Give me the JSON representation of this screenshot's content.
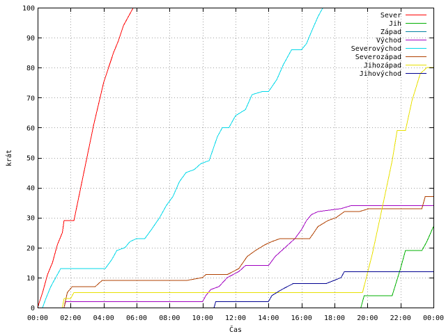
{
  "chart_data": {
    "type": "line",
    "title": "",
    "xlabel": "Čas",
    "ylabel": "krát",
    "xlim": [
      0,
      24
    ],
    "ylim": [
      0,
      100
    ],
    "x_ticks": [
      0,
      2,
      4,
      6,
      8,
      10,
      12,
      14,
      16,
      18,
      20,
      22,
      24
    ],
    "x_tick_labels": [
      "00:00",
      "02:00",
      "04:00",
      "06:00",
      "08:00",
      "10:00",
      "12:00",
      "14:00",
      "16:00",
      "18:00",
      "20:00",
      "22:00",
      "00:00"
    ],
    "y_ticks": [
      0,
      10,
      20,
      30,
      40,
      50,
      60,
      70,
      80,
      90,
      100
    ],
    "y_tick_labels": [
      "0",
      "10",
      "20",
      "30",
      "40",
      "50",
      "60",
      "70",
      "80",
      "90",
      "100"
    ],
    "grid": true,
    "legend_position": "top-right",
    "series": [
      {
        "name": "Sever",
        "color": "#ff0000",
        "points": [
          [
            0,
            0
          ],
          [
            0.3,
            5
          ],
          [
            0.6,
            11
          ],
          [
            0.9,
            15
          ],
          [
            1.2,
            21
          ],
          [
            1.5,
            25
          ],
          [
            1.6,
            29
          ],
          [
            2.2,
            29
          ],
          [
            2.5,
            37
          ],
          [
            2.8,
            45
          ],
          [
            3.1,
            53
          ],
          [
            3.4,
            61
          ],
          [
            3.7,
            68
          ],
          [
            4.0,
            75
          ],
          [
            4.3,
            80
          ],
          [
            4.6,
            85
          ],
          [
            4.9,
            89
          ],
          [
            5.2,
            94
          ],
          [
            5.5,
            97
          ],
          [
            5.8,
            100
          ]
        ]
      },
      {
        "name": "Jih",
        "color": "#00b000",
        "points": [
          [
            19.6,
            0
          ],
          [
            19.8,
            4
          ],
          [
            21.5,
            4
          ],
          [
            22.0,
            13
          ],
          [
            22.3,
            19
          ],
          [
            23.3,
            19
          ],
          [
            23.6,
            22
          ],
          [
            24,
            27
          ]
        ]
      },
      {
        "name": "Západ",
        "color": "#0080a0",
        "points": []
      },
      {
        "name": "Východ",
        "color": "#a000c0",
        "points": [
          [
            1.6,
            0
          ],
          [
            1.7,
            2
          ],
          [
            10.0,
            2
          ],
          [
            10.2,
            4
          ],
          [
            10.5,
            6
          ],
          [
            11.0,
            7
          ],
          [
            11.5,
            10
          ],
          [
            12.2,
            12
          ],
          [
            12.6,
            14
          ],
          [
            14.0,
            14
          ],
          [
            14.4,
            17
          ],
          [
            15.0,
            20
          ],
          [
            15.6,
            23
          ],
          [
            16.0,
            26
          ],
          [
            16.3,
            29
          ],
          [
            16.6,
            31
          ],
          [
            17.0,
            32
          ],
          [
            18.4,
            33
          ],
          [
            19.0,
            34
          ],
          [
            23.6,
            34
          ],
          [
            24,
            34
          ]
        ]
      },
      {
        "name": "Severovýchod",
        "color": "#00d8e8",
        "points": [
          [
            0.3,
            0
          ],
          [
            0.5,
            3
          ],
          [
            0.8,
            7
          ],
          [
            1.1,
            10
          ],
          [
            1.4,
            13
          ],
          [
            2.5,
            13
          ],
          [
            4.1,
            13
          ],
          [
            4.5,
            16
          ],
          [
            4.8,
            19
          ],
          [
            5.3,
            20
          ],
          [
            5.6,
            22
          ],
          [
            6.0,
            23
          ],
          [
            6.5,
            23
          ],
          [
            6.9,
            26
          ],
          [
            7.4,
            30
          ],
          [
            7.8,
            34
          ],
          [
            8.2,
            37
          ],
          [
            8.6,
            42
          ],
          [
            9.0,
            45
          ],
          [
            9.5,
            46
          ],
          [
            9.9,
            48
          ],
          [
            10.4,
            49
          ],
          [
            10.9,
            57
          ],
          [
            11.2,
            60
          ],
          [
            11.6,
            60
          ],
          [
            12.0,
            64
          ],
          [
            12.6,
            66
          ],
          [
            13.0,
            71
          ],
          [
            13.6,
            72
          ],
          [
            14.0,
            72
          ],
          [
            14.5,
            76
          ],
          [
            14.9,
            81
          ],
          [
            15.4,
            86
          ],
          [
            16.0,
            86
          ],
          [
            16.3,
            88
          ],
          [
            16.6,
            92
          ],
          [
            17.0,
            97
          ],
          [
            17.3,
            100
          ]
        ]
      },
      {
        "name": "Severozápad",
        "color": "#b04000",
        "points": [
          [
            1.6,
            0
          ],
          [
            1.8,
            5
          ],
          [
            2.1,
            7
          ],
          [
            3.5,
            7
          ],
          [
            3.9,
            9
          ],
          [
            9.0,
            9
          ],
          [
            10.0,
            10
          ],
          [
            10.2,
            11
          ],
          [
            11.5,
            11
          ],
          [
            12.2,
            13
          ],
          [
            12.7,
            17
          ],
          [
            13.2,
            19
          ],
          [
            13.8,
            21
          ],
          [
            14.2,
            22
          ],
          [
            14.7,
            23
          ],
          [
            16.5,
            23
          ],
          [
            17.0,
            27
          ],
          [
            17.6,
            29
          ],
          [
            18.1,
            30
          ],
          [
            18.6,
            32
          ],
          [
            19.5,
            32
          ],
          [
            20.1,
            33
          ],
          [
            23.3,
            33
          ],
          [
            23.5,
            37
          ],
          [
            24,
            37
          ]
        ]
      },
      {
        "name": "Jihozápad",
        "color": "#e8e000",
        "points": [
          [
            1.5,
            0
          ],
          [
            1.6,
            3
          ],
          [
            2.0,
            3
          ],
          [
            2.2,
            5
          ],
          [
            19.0,
            5
          ],
          [
            19.7,
            5
          ],
          [
            20.3,
            18
          ],
          [
            21.0,
            36
          ],
          [
            21.5,
            49
          ],
          [
            21.8,
            59
          ],
          [
            22.3,
            59
          ],
          [
            22.7,
            69
          ],
          [
            23.2,
            78
          ],
          [
            23.6,
            80
          ],
          [
            24,
            80
          ]
        ]
      },
      {
        "name": "Jihovýchod",
        "color": "#000090",
        "points": [
          [
            10.7,
            0
          ],
          [
            10.8,
            2
          ],
          [
            14.0,
            2
          ],
          [
            14.2,
            4
          ],
          [
            14.8,
            6
          ],
          [
            15.5,
            8
          ],
          [
            17.5,
            8
          ],
          [
            18.4,
            10
          ],
          [
            18.6,
            12
          ],
          [
            24,
            12
          ]
        ]
      }
    ]
  }
}
